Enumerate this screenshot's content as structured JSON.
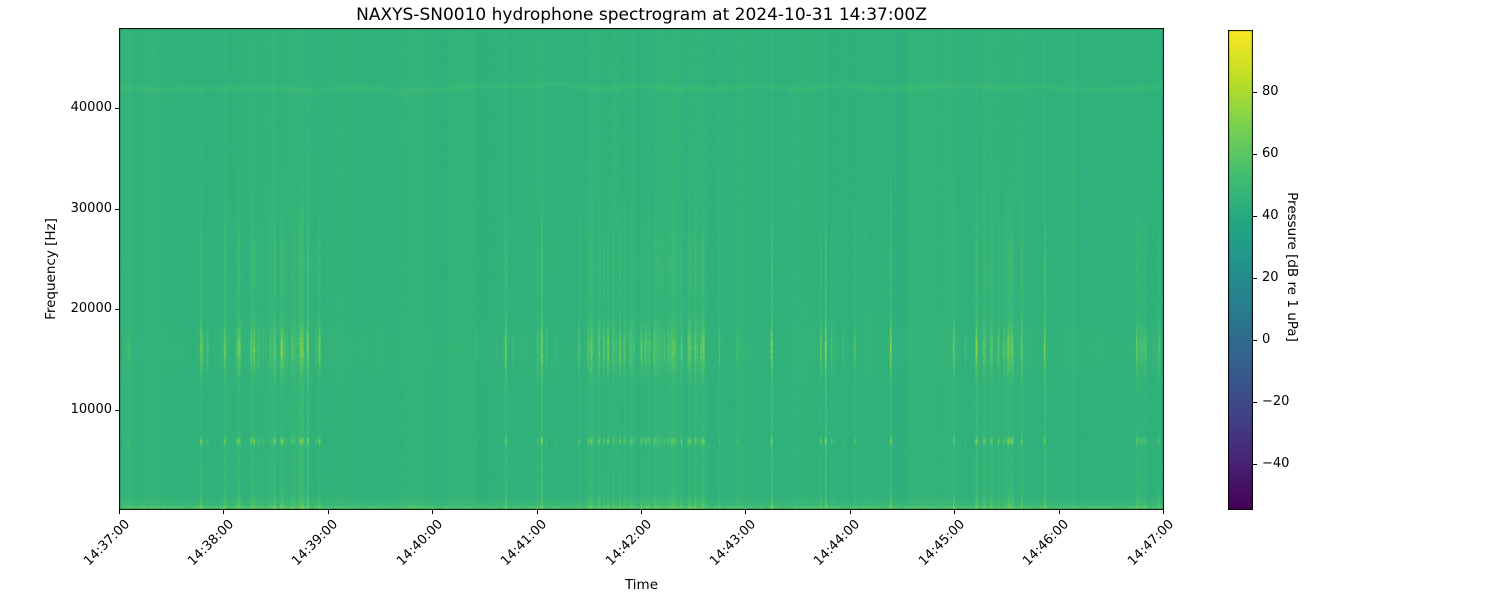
{
  "chart_data": {
    "type": "heatmap",
    "subtype": "spectrogram",
    "title": "NAXYS-SN0010 hydrophone spectrogram at 2024-10-31 14:37:00Z",
    "xlabel": "Time",
    "ylabel": "Frequency [Hz]",
    "x_tick_labels": [
      "14:37:00",
      "14:38:00",
      "14:39:00",
      "14:40:00",
      "14:41:00",
      "14:42:00",
      "14:43:00",
      "14:44:00",
      "14:45:00",
      "14:46:00",
      "14:47:00"
    ],
    "x_range": {
      "start": "14:37:00",
      "end": "14:47:00",
      "duration_seconds": 600
    },
    "y_ticks_hz": [
      10000,
      20000,
      30000,
      40000
    ],
    "y_tick_labels": [
      "10000",
      "20000",
      "30000",
      "40000"
    ],
    "freq_range_hz": [
      0,
      48000
    ],
    "grid": false,
    "colormap": "viridis",
    "colorbar": {
      "label": "Pressure [dB re 1 uPa]",
      "ticks": [
        80,
        60,
        40,
        20,
        0,
        -20,
        -40
      ],
      "tick_labels": [
        "80",
        "60",
        "40",
        "20",
        "0",
        "−20",
        "−40"
      ],
      "vmin": -55,
      "vmax": 100,
      "position": "right"
    },
    "content": {
      "background_level_db": 45,
      "features": [
        {
          "name": "broadband-click-train",
          "type": "vertical-streaks",
          "freq_hz": [
            0,
            48000
          ],
          "typical_db": 50,
          "peak_db": 70,
          "pattern": "repeating transient clicks in bursts with quiet gaps, roughly 1-minute cadence"
        },
        {
          "name": "mid-band-click-energy",
          "type": "band",
          "freq_hz": [
            14000,
            18400
          ],
          "peak_db": 75,
          "pattern": "dense speckled vertical dashes aligned with clicks"
        },
        {
          "name": "tonal-dash-line",
          "type": "line",
          "freq_hz": [
            6500,
            7300
          ],
          "peak_db": 80,
          "pattern": "bright short dashes aligned with clicks"
        },
        {
          "name": "low-frequency-band",
          "type": "band",
          "freq_hz": [
            0,
            1600
          ],
          "peak_db": 65,
          "pattern": "continuously elevated level with bright dashes near 0-500 Hz"
        },
        {
          "name": "faint-wavy-line",
          "type": "line",
          "freq_hz": [
            41800,
            42400
          ],
          "peak_db": 50,
          "pattern": "very faint undulating horizontal line"
        }
      ]
    }
  },
  "colors": {
    "figure_bg": "#ffffff",
    "axes_edge": "#000000",
    "text": "#000000",
    "spectrogram_background_green": "#2fb17e",
    "streak_bright": "#a5db36",
    "colorbar_top": "#fde725",
    "colorbar_bottom": "#440154"
  }
}
